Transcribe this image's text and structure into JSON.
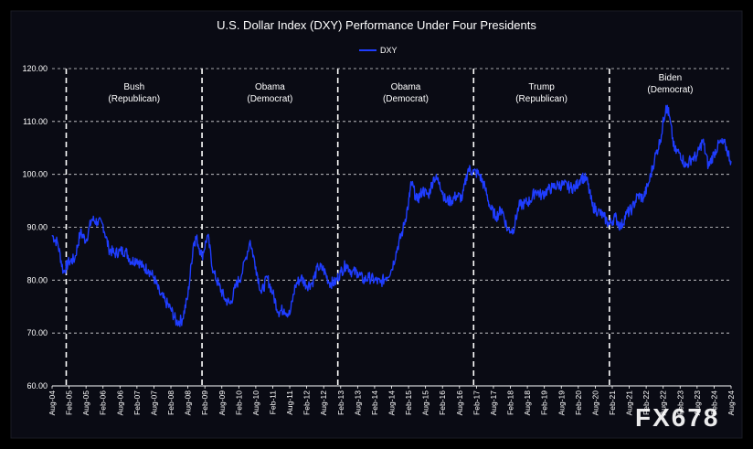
{
  "watermark": "FX678",
  "chart_data": {
    "type": "line",
    "title": "U.S. Dollar Index (DXY) Performance Under Four Presidents",
    "xlabel": "",
    "ylabel": "",
    "ylim": [
      60,
      120
    ],
    "yticks": [
      "60.00",
      "70.00",
      "80.00",
      "90.00",
      "100.00",
      "110.00",
      "120.00"
    ],
    "yticks_values": [
      60,
      70,
      80,
      90,
      100,
      110,
      120
    ],
    "xlim": [
      "2004-08",
      "2024-08"
    ],
    "xticks": [
      "Aug-04",
      "Feb-05",
      "Aug-05",
      "Feb-06",
      "Aug-06",
      "Feb-07",
      "Aug-07",
      "Feb-08",
      "Aug-08",
      "Feb-09",
      "Aug-09",
      "Feb-10",
      "Aug-10",
      "Feb-11",
      "Aug-11",
      "Feb-12",
      "Aug-12",
      "Feb-13",
      "Aug-13",
      "Feb-14",
      "Aug-14",
      "Feb-15",
      "Aug-15",
      "Feb-16",
      "Aug-16",
      "Feb-17",
      "Aug-17",
      "Feb-18",
      "Aug-18",
      "Feb-19",
      "Aug-19",
      "Feb-20",
      "Aug-20",
      "Feb-21",
      "Aug-21",
      "Feb-22",
      "Aug-22",
      "Feb-23",
      "Aug-23",
      "Feb-24",
      "Aug-24"
    ],
    "grid": "horizontal dashed",
    "legend_position": "top-center",
    "series": [
      {
        "name": "DXY",
        "color": "#1f3dff",
        "x": [
          "2004-08",
          "2004-10",
          "2004-12",
          "2005-02",
          "2005-04",
          "2005-06",
          "2005-08",
          "2005-10",
          "2005-12",
          "2006-02",
          "2006-04",
          "2006-06",
          "2006-08",
          "2006-10",
          "2006-12",
          "2007-02",
          "2007-04",
          "2007-06",
          "2007-08",
          "2007-10",
          "2007-12",
          "2008-02",
          "2008-04",
          "2008-06",
          "2008-08",
          "2008-10",
          "2008-11",
          "2009-01",
          "2009-03",
          "2009-05",
          "2009-07",
          "2009-09",
          "2009-11",
          "2010-01",
          "2010-03",
          "2010-06",
          "2010-08",
          "2010-10",
          "2010-12",
          "2011-02",
          "2011-04",
          "2011-06",
          "2011-08",
          "2011-10",
          "2011-12",
          "2012-02",
          "2012-04",
          "2012-06",
          "2012-08",
          "2012-10",
          "2012-12",
          "2013-02",
          "2013-04",
          "2013-06",
          "2013-08",
          "2013-10",
          "2013-12",
          "2014-02",
          "2014-04",
          "2014-06",
          "2014-08",
          "2014-10",
          "2014-12",
          "2015-02",
          "2015-03",
          "2015-05",
          "2015-07",
          "2015-09",
          "2015-11",
          "2016-01",
          "2016-03",
          "2016-05",
          "2016-07",
          "2016-09",
          "2016-11",
          "2017-01",
          "2017-03",
          "2017-05",
          "2017-07",
          "2017-09",
          "2017-11",
          "2018-01",
          "2018-03",
          "2018-05",
          "2018-07",
          "2018-09",
          "2018-11",
          "2019-01",
          "2019-03",
          "2019-05",
          "2019-07",
          "2019-09",
          "2019-11",
          "2020-01",
          "2020-03",
          "2020-05",
          "2020-07",
          "2020-09",
          "2020-11",
          "2021-01",
          "2021-03",
          "2021-05",
          "2021-07",
          "2021-09",
          "2021-11",
          "2022-01",
          "2022-03",
          "2022-05",
          "2022-07",
          "2022-09",
          "2022-10",
          "2022-12",
          "2023-02",
          "2023-04",
          "2023-06",
          "2023-08",
          "2023-10",
          "2023-12",
          "2024-02",
          "2024-04",
          "2024-06",
          "2024-08"
        ],
        "values": [
          88.5,
          87.0,
          81.5,
          83.5,
          84.0,
          89.0,
          87.5,
          91.5,
          91.0,
          90.5,
          86.0,
          85.0,
          85.5,
          85.5,
          83.5,
          84.0,
          82.5,
          82.0,
          80.5,
          77.5,
          76.0,
          74.5,
          72.0,
          72.5,
          77.0,
          87.0,
          88.0,
          84.5,
          88.5,
          81.5,
          79.0,
          76.5,
          75.5,
          79.0,
          81.0,
          87.5,
          82.5,
          77.5,
          80.5,
          77.5,
          74.0,
          74.5,
          73.5,
          79.0,
          80.5,
          79.0,
          79.5,
          82.5,
          82.0,
          79.5,
          79.5,
          81.5,
          83.0,
          81.5,
          81.5,
          80.0,
          80.5,
          80.0,
          79.5,
          80.5,
          82.0,
          86.0,
          89.5,
          94.5,
          98.5,
          95.0,
          97.0,
          96.0,
          99.5,
          98.5,
          95.0,
          95.0,
          96.0,
          95.5,
          101.0,
          100.5,
          100.0,
          97.5,
          93.5,
          92.0,
          93.5,
          89.5,
          89.5,
          94.0,
          94.5,
          95.0,
          97.0,
          96.0,
          97.0,
          97.5,
          98.0,
          98.0,
          97.5,
          97.5,
          99.5,
          99.0,
          94.0,
          93.0,
          92.0,
          90.5,
          92.0,
          90.0,
          92.5,
          93.5,
          96.0,
          95.5,
          98.5,
          103.0,
          106.5,
          113.0,
          111.5,
          104.5,
          104.0,
          101.5,
          103.0,
          103.5,
          106.5,
          101.5,
          104.0,
          106.0,
          105.5,
          102.5
        ]
      }
    ],
    "annotations": [
      {
        "date": "2005-01",
        "name": "Bush",
        "party": "(Republican)"
      },
      {
        "date": "2009-01",
        "name": "Obama",
        "party": "(Democrat)"
      },
      {
        "date": "2013-01",
        "name": "Obama",
        "party": "(Democrat)"
      },
      {
        "date": "2017-01",
        "name": "Trump",
        "party": "(Republican)"
      },
      {
        "date": "2021-01",
        "name": "Biden",
        "party": "(Democrat)"
      }
    ]
  }
}
